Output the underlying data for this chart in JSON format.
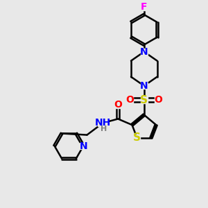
{
  "bg_color": "#e8e8e8",
  "bond_color": "#000000",
  "atom_colors": {
    "N": "#0000ff",
    "O": "#ff0000",
    "S": "#cccc00",
    "F": "#ff00ff",
    "H": "#808080"
  },
  "lw": 1.8,
  "dbo": 0.07,
  "fs": 9,
  "fig_size": [
    3.0,
    3.0
  ],
  "dpi": 100
}
